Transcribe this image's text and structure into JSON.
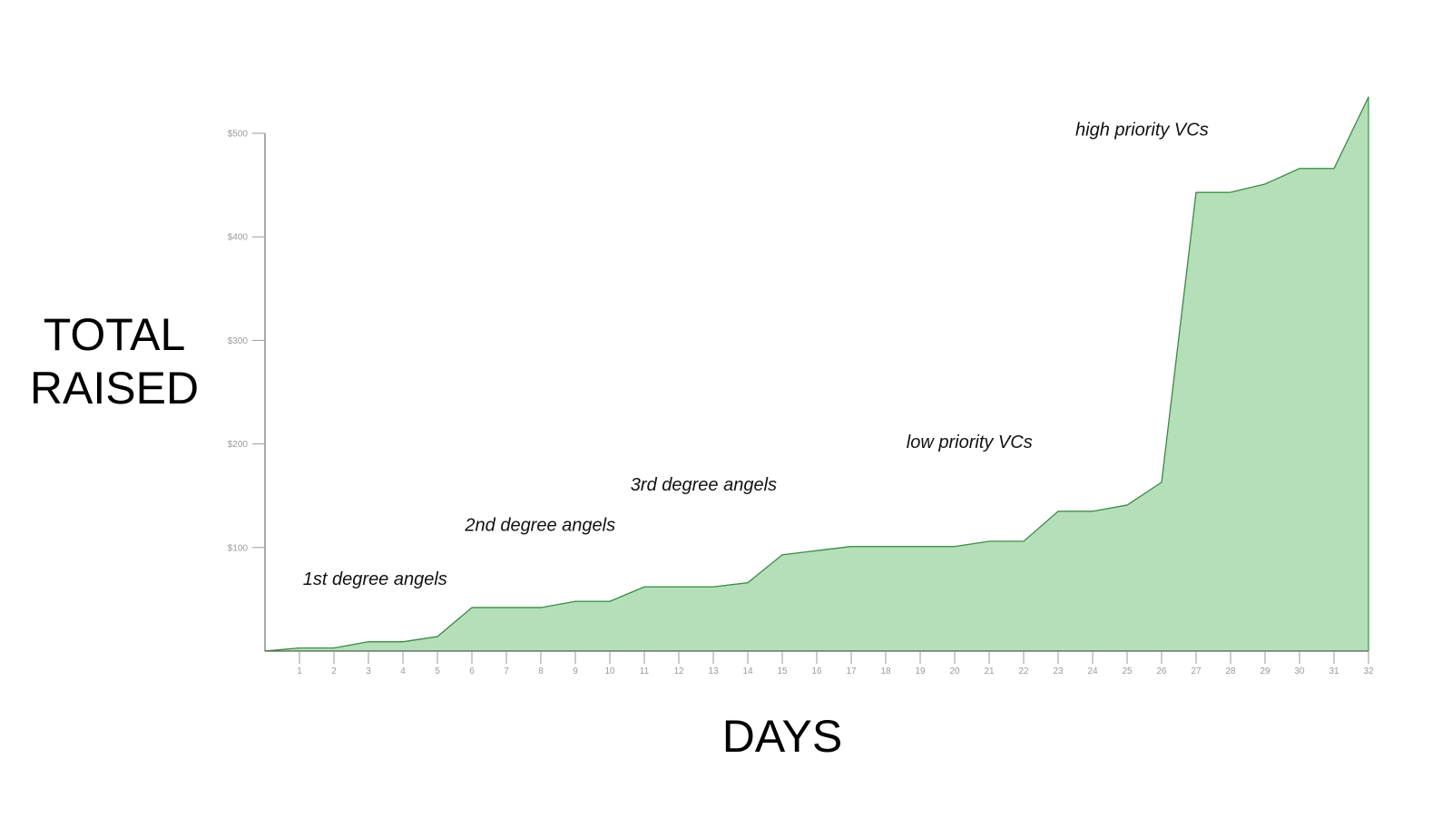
{
  "chart_data": {
    "type": "area",
    "title": "",
    "ylabel_lines": [
      "TOTAL",
      "RAISED"
    ],
    "xlabel": "DAYS",
    "x": [
      0,
      1,
      2,
      3,
      4,
      5,
      6,
      7,
      8,
      9,
      10,
      11,
      12,
      13,
      14,
      15,
      16,
      17,
      18,
      19,
      20,
      21,
      22,
      23,
      24,
      25,
      26,
      27,
      28,
      29,
      30,
      31,
      32
    ],
    "x_tick_labels": [
      "1",
      "2",
      "3",
      "4",
      "5",
      "6",
      "7",
      "8",
      "9",
      "10",
      "11",
      "12",
      "13",
      "14",
      "15",
      "16",
      "17",
      "18",
      "19",
      "20",
      "21",
      "22",
      "23",
      "24",
      "25",
      "26",
      "27",
      "28",
      "29",
      "30",
      "31",
      "32"
    ],
    "y_ticks": [
      {
        "value": 100,
        "label": "$100"
      },
      {
        "value": 200,
        "label": "$200"
      },
      {
        "value": 300,
        "label": "$300"
      },
      {
        "value": 400,
        "label": "$400"
      },
      {
        "value": 500,
        "label": "$500"
      }
    ],
    "xlim": [
      0,
      32
    ],
    "ylim": [
      0,
      500
    ],
    "grid": false,
    "fill_color": "#b4dfb9",
    "line_color": "#3f8f47",
    "series": [
      {
        "values": [
          0,
          3,
          3,
          9,
          9,
          14,
          42,
          42,
          42,
          48,
          48,
          62,
          62,
          62,
          66,
          93,
          97,
          101,
          101,
          101,
          101,
          106,
          106,
          135,
          135,
          141,
          163,
          443,
          443,
          451,
          466,
          466,
          535
        ]
      }
    ],
    "annotations": [
      {
        "text": "1st degree angels",
        "x": 1.1,
        "y": 64
      },
      {
        "text": "2nd degree angels",
        "x": 5.8,
        "y": 116
      },
      {
        "text": "3rd degree angels",
        "x": 10.6,
        "y": 155
      },
      {
        "text": "low priority VCs",
        "x": 18.6,
        "y": 196
      },
      {
        "text": "high priority VCs",
        "x": 23.5,
        "y": 498
      }
    ]
  }
}
